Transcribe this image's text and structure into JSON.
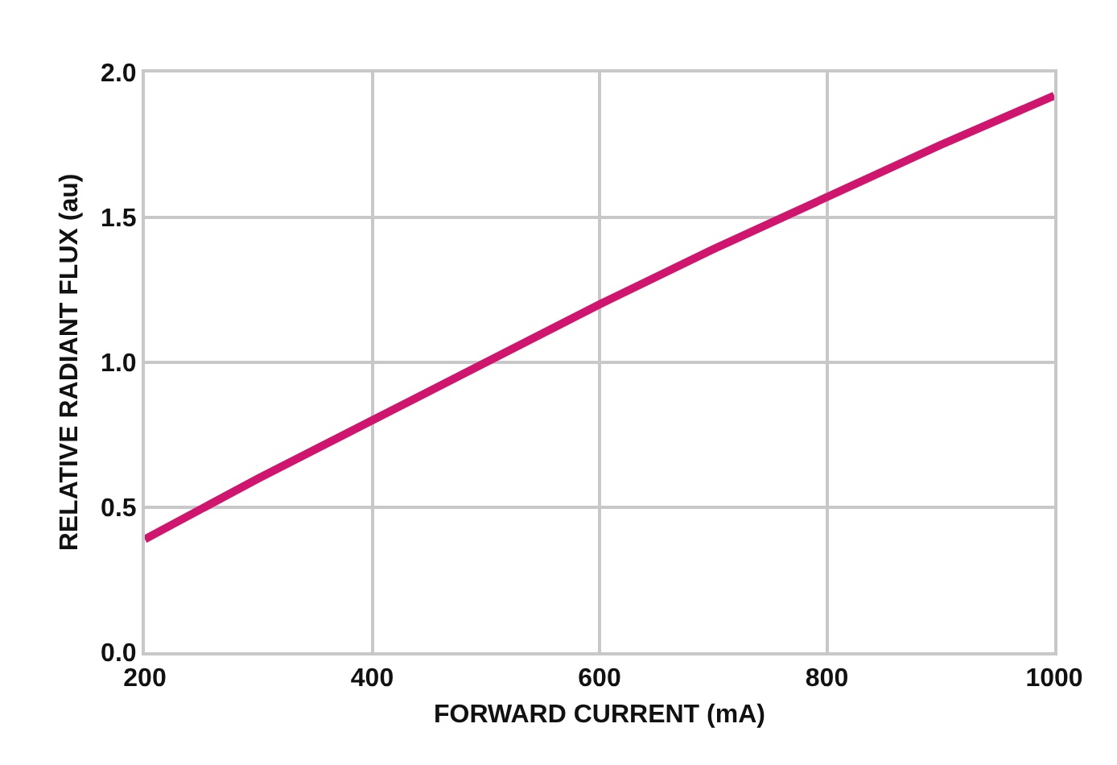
{
  "chart_data": {
    "type": "line",
    "xlabel": "FORWARD CURRENT (mA)",
    "ylabel": "RELATIVE RADIANT FLUX (au)",
    "x": [
      200,
      300,
      400,
      500,
      600,
      700,
      800,
      900,
      1000
    ],
    "series": [
      {
        "color": "#d0156e",
        "values": [
          0.39,
          0.6,
          0.8,
          1.0,
          1.2,
          1.39,
          1.57,
          1.75,
          1.92
        ]
      }
    ],
    "xlim": [
      200,
      1000
    ],
    "xticks": [
      200,
      400,
      600,
      800,
      1000
    ],
    "ylim": [
      0,
      2
    ],
    "yticks": [
      {
        "value": 0,
        "label": "0.0"
      },
      {
        "value": 0.5,
        "label": "0.5"
      },
      {
        "value": 1,
        "label": "1.0"
      },
      {
        "value": 1.5,
        "label": "1.5"
      },
      {
        "value": 2,
        "label": "2.0"
      }
    ],
    "grid": true,
    "marker": "none",
    "line_style": "solid"
  }
}
